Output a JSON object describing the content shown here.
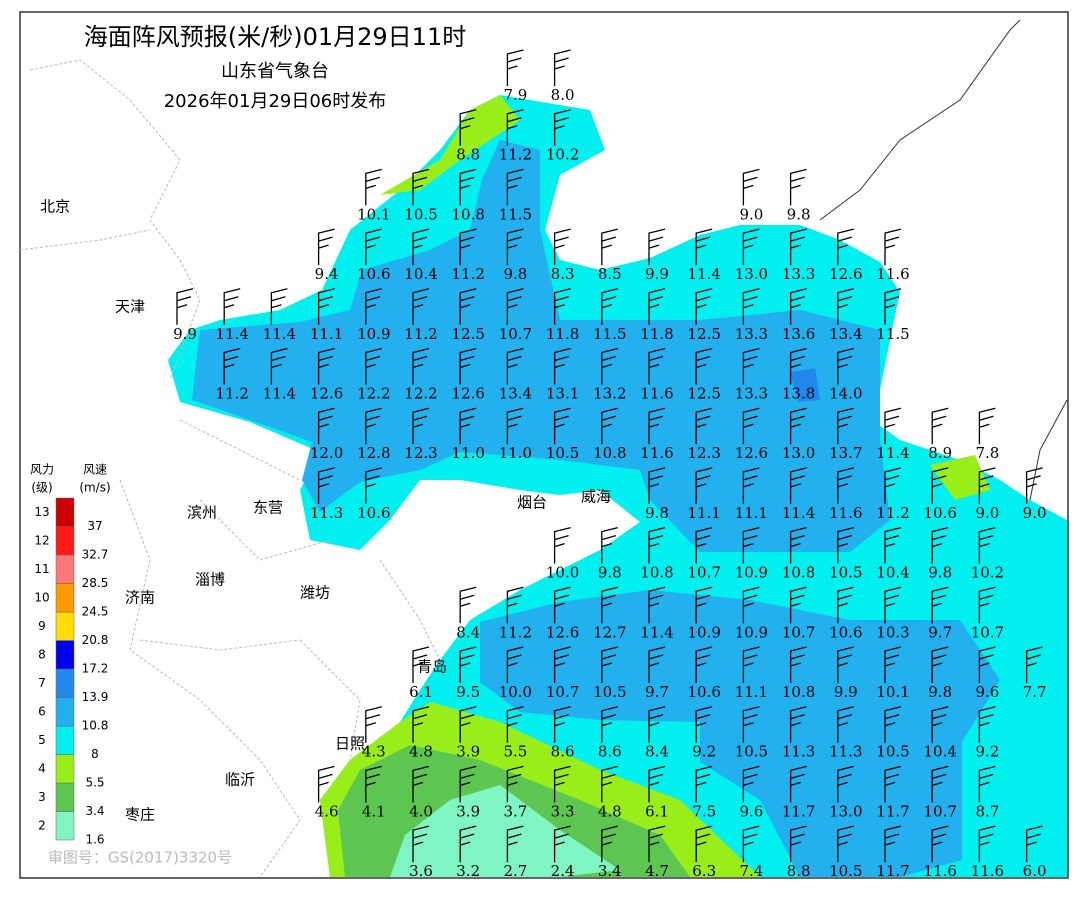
{
  "header": {
    "title": "海面阵风预报(米/秒)01月29日11时",
    "issuer": "山东省气象台",
    "issued": "2026年01月29日06时发布"
  },
  "cities": [
    "北京",
    "天津",
    "滨州",
    "东营",
    "淄博",
    "济南",
    "潍坊",
    "烟台",
    "威海",
    "青岛",
    "日照",
    "临沂",
    "枣庄"
  ],
  "watermark": "审图号：GS(2017)3320号",
  "legend": {
    "level_title": "风力",
    "level_unit": "(级)",
    "speed_title": "风速",
    "speed_unit": "(m/s)",
    "levels": [
      "2",
      "3",
      "4",
      "5",
      "6",
      "7",
      "8",
      "9",
      "10",
      "11",
      "12",
      "13"
    ],
    "speeds": [
      "1.6",
      "3.4",
      "5.5",
      "8",
      "10.8",
      "13.9",
      "17.2",
      "20.8",
      "24.5",
      "28.5",
      "32.7",
      "37"
    ],
    "colors": [
      "#7ff5c3",
      "#5cc650",
      "#99ee1a",
      "#00f0f0",
      "#22b0ee",
      "#2288ee",
      "#0000ee",
      "#ffdd00",
      "#ff9900",
      "#ff7777",
      "#ff1a1a",
      "#cc0000"
    ]
  },
  "wind_grid": [
    [
      null,
      null,
      null,
      null,
      null,
      null,
      null,
      "7.9",
      "8.0",
      null,
      null,
      null,
      null,
      null,
      null,
      null,
      null,
      null,
      null
    ],
    [
      null,
      null,
      null,
      null,
      null,
      null,
      "8.8",
      "11.2",
      "10.2",
      null,
      null,
      null,
      null,
      null,
      null,
      null,
      null,
      null,
      null
    ],
    [
      null,
      null,
      null,
      null,
      "10.1",
      "10.5",
      "10.8",
      "11.5",
      null,
      null,
      null,
      null,
      "9.0",
      "9.8",
      null,
      null,
      null,
      null,
      null
    ],
    [
      null,
      null,
      null,
      "9.4",
      "10.6",
      "10.4",
      "11.2",
      "9.8",
      "8.3",
      "8.5",
      "9.9",
      "11.4",
      "13.0",
      "13.3",
      "12.6",
      "11.6",
      null,
      null,
      null
    ],
    [
      "9.9",
      "11.4",
      "11.4",
      "11.1",
      "10.9",
      "11.2",
      "12.5",
      "10.7",
      "11.8",
      "11.5",
      "11.8",
      "12.5",
      "13.3",
      "13.6",
      "13.4",
      "11.5",
      null,
      null,
      null
    ],
    [
      null,
      "11.2",
      "11.4",
      "12.6",
      "12.2",
      "12.2",
      "12.6",
      "13.4",
      "13.1",
      "13.2",
      "11.6",
      "12.5",
      "13.3",
      "13.8",
      "14.0",
      null,
      null,
      null,
      null
    ],
    [
      null,
      null,
      null,
      "12.0",
      "12.8",
      "12.3",
      "11.0",
      "11.0",
      "10.5",
      "10.8",
      "11.6",
      "12.3",
      "12.6",
      "13.0",
      "13.7",
      "11.4",
      "8.9",
      "7.8",
      null
    ],
    [
      null,
      null,
      null,
      "11.3",
      "10.6",
      null,
      null,
      null,
      null,
      null,
      "9.8",
      "11.1",
      "11.1",
      "11.4",
      "11.6",
      "11.2",
      "10.6",
      "9.0",
      "9.0"
    ],
    [
      null,
      null,
      null,
      null,
      null,
      null,
      null,
      null,
      "10.0",
      "9.8",
      "10.8",
      "10.7",
      "10.9",
      "10.8",
      "10.5",
      "10.4",
      "9.8",
      "10.2",
      null
    ],
    [
      null,
      null,
      null,
      null,
      null,
      null,
      "8.4",
      "11.2",
      "12.6",
      "12.7",
      "11.4",
      "10.9",
      "10.9",
      "10.7",
      "10.6",
      "10.3",
      "9.7",
      "10.7",
      null
    ],
    [
      null,
      null,
      null,
      null,
      null,
      "6.1",
      "9.5",
      "10.0",
      "10.7",
      "10.5",
      "9.7",
      "10.6",
      "11.1",
      "10.8",
      "9.9",
      "10.1",
      "9.8",
      "9.6",
      "7.7"
    ],
    [
      null,
      null,
      null,
      null,
      "4.3",
      "4.8",
      "3.9",
      "5.5",
      "8.6",
      "8.6",
      "8.4",
      "9.2",
      "10.5",
      "11.3",
      "11.3",
      "10.5",
      "10.4",
      "9.2",
      null
    ],
    [
      null,
      null,
      null,
      "4.6",
      "4.1",
      "4.0",
      "3.9",
      "3.7",
      "3.3",
      "4.8",
      "6.1",
      "7.5",
      "9.6",
      "11.7",
      "13.0",
      "11.7",
      "10.7",
      "8.7",
      null
    ],
    [
      null,
      null,
      null,
      null,
      null,
      "3.6",
      "3.2",
      "2.7",
      "2.4",
      "3.4",
      "4.7",
      "6.3",
      "7.4",
      "8.8",
      "10.5",
      "11.7",
      "11.6",
      "11.6",
      "6.0"
    ]
  ]
}
